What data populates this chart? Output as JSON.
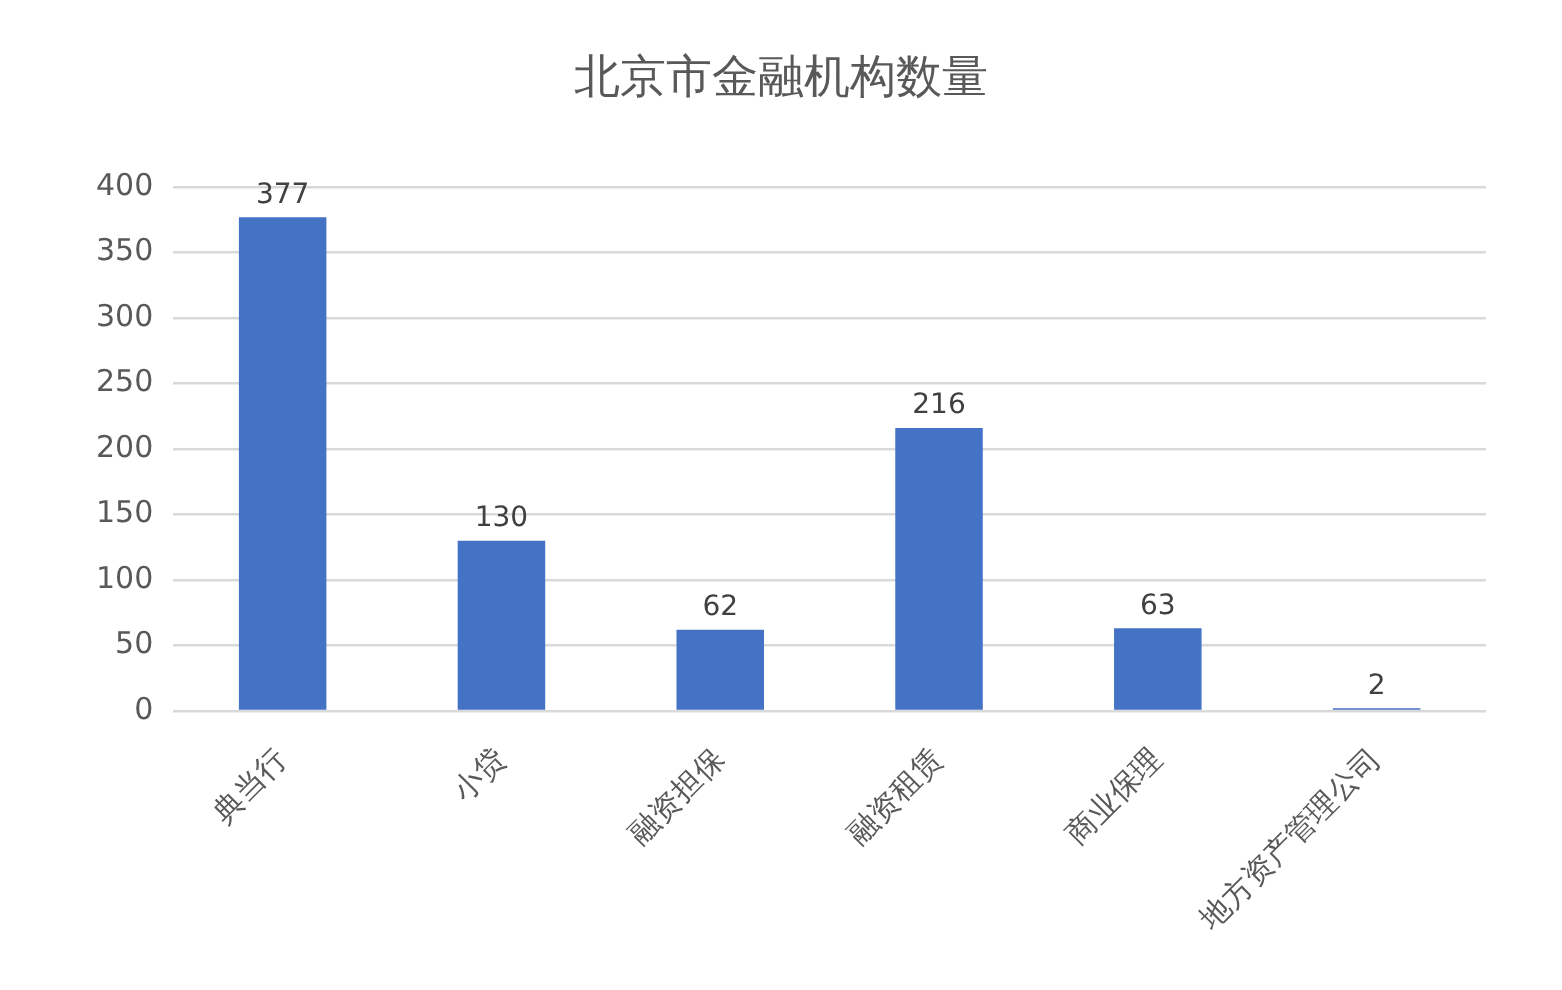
{
  "chart_data": {
    "type": "bar",
    "title": "北京市金融机构数量",
    "categories": [
      "典当行",
      "小贷",
      "融资担保",
      "融资租赁",
      "商业保理",
      "地方资产管理公司"
    ],
    "values": [
      377,
      130,
      62,
      216,
      63,
      2
    ],
    "color": "#4472c4",
    "ylim": [
      0,
      400
    ],
    "yticks": [
      0,
      50,
      100,
      150,
      200,
      250,
      300,
      350,
      400
    ],
    "grid": "y",
    "data_labels": true
  }
}
